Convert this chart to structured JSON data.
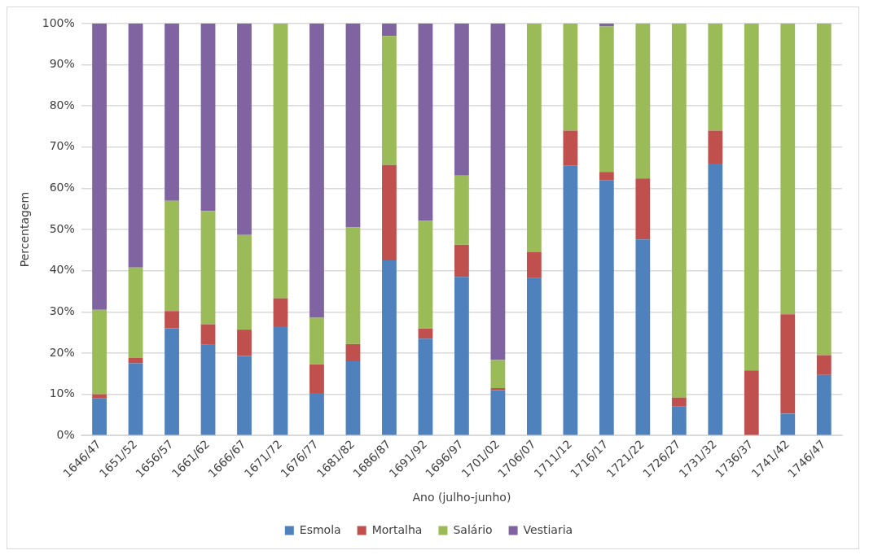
{
  "chart_data": {
    "type": "bar",
    "stacked": true,
    "xlabel": "Ano (julho-junho)",
    "ylabel": "Percentagem",
    "categories": [
      "1646/47",
      "1651/52",
      "1656/57",
      "1661/62",
      "1666/67",
      "1671/72",
      "1676/77",
      "1681/82",
      "1686/87",
      "1691/92",
      "1696/97",
      "1701/02",
      "1706/07",
      "1711/12",
      "1716/17",
      "1721/22",
      "1726/27",
      "1731/32",
      "1736/37",
      "1741/42",
      "1746/47"
    ],
    "series": [
      {
        "name": "Esmola",
        "color": "#4f81bd",
        "values": [
          9,
          17.5,
          26,
          22,
          19.3,
          26.5,
          10.3,
          18,
          42.5,
          23.5,
          38.5,
          11,
          38.2,
          65.5,
          62,
          47.6,
          7,
          66,
          0,
          5.3,
          14.7
        ]
      },
      {
        "name": "Mortalha",
        "color": "#c0504d",
        "values": [
          1,
          1.3,
          4.2,
          5,
          6.4,
          6.8,
          7,
          4.2,
          23.2,
          2.5,
          7.8,
          0.5,
          6.3,
          8.5,
          2,
          14.8,
          2.2,
          8,
          15.8,
          24.1,
          4.8
        ]
      },
      {
        "name": "Salário",
        "color": "#9bbb59",
        "values": [
          20.5,
          22,
          26.8,
          27.5,
          23,
          66.7,
          11.3,
          28.3,
          31.3,
          26.1,
          16.8,
          6.8,
          55.5,
          26,
          35.3,
          37.6,
          90.8,
          26,
          84.2,
          70.6,
          80.5
        ]
      },
      {
        "name": "Vestiaria",
        "color": "#8064a2",
        "values": [
          69.5,
          59.2,
          43,
          45.5,
          51.3,
          0,
          71.4,
          49.5,
          3,
          47.9,
          36.9,
          81.7,
          0,
          0,
          0.7,
          0,
          0,
          0,
          0,
          0,
          0
        ]
      }
    ],
    "ylim": [
      0,
      100
    ],
    "yticks": [
      {
        "value": 0,
        "label": "0%"
      },
      {
        "value": 10,
        "label": "10%"
      },
      {
        "value": 20,
        "label": "20%"
      },
      {
        "value": 30,
        "label": "30%"
      },
      {
        "value": 40,
        "label": "40%"
      },
      {
        "value": 50,
        "label": "50%"
      },
      {
        "value": 60,
        "label": "60%"
      },
      {
        "value": 70,
        "label": "70%"
      },
      {
        "value": 80,
        "label": "80%"
      },
      {
        "value": 90,
        "label": "90%"
      },
      {
        "value": 100,
        "label": "100%"
      }
    ],
    "grid": "y",
    "legend": "bottom"
  }
}
